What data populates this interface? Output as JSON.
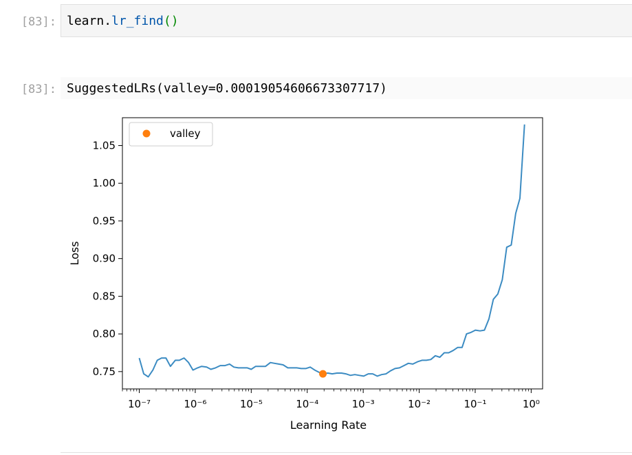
{
  "input_cell": {
    "prompt": "[83]:",
    "code_object": "learn",
    "code_dot": ".",
    "code_method": "lr_find",
    "code_parens": "()"
  },
  "output_cell": {
    "prompt": "[83]:",
    "text": "SuggestedLRs(valley=0.00019054606673307717)"
  },
  "chart_data": {
    "type": "line",
    "title": "",
    "xlabel": "Learning Rate",
    "ylabel": "Loss",
    "xscale": "log",
    "xlim": [
      5e-08,
      1.6
    ],
    "ylim": [
      0.727,
      1.087
    ],
    "grid": false,
    "legend": {
      "position": "top-left",
      "entries": [
        "valley"
      ]
    },
    "x_ticks": [
      "10⁻⁷",
      "10⁻⁶",
      "10⁻⁵",
      "10⁻⁴",
      "10⁻³",
      "10⁻²",
      "10⁻¹",
      "10⁰"
    ],
    "y_ticks": [
      "0.75",
      "0.80",
      "0.85",
      "0.90",
      "0.95",
      "1.00",
      "1.05"
    ],
    "line_color": "#3b8bc2",
    "marker_color": "#ff7f0e",
    "series": [
      {
        "x": [
          1e-07,
          1.2e-07,
          1.45e-07,
          1.75e-07,
          2.1e-07,
          2.5e-07,
          3e-07,
          3.6e-07,
          4.4e-07,
          5.2e-07,
          6.3e-07,
          7.6e-07,
          9.1e-07,
          1.1e-06,
          1.3e-06,
          1.6e-06,
          1.9e-06,
          2.3e-06,
          2.8e-06,
          3.4e-06,
          4.1e-06,
          4.9e-06,
          5.9e-06,
          7.1e-06,
          8.5e-06,
          1e-05,
          1.2e-05,
          1.5e-05,
          1.8e-05,
          2.2e-05,
          2.6e-05,
          3.1e-05,
          3.7e-05,
          4.5e-05,
          5.4e-05,
          6.5e-05,
          7.8e-05,
          9.4e-05,
          0.000113,
          0.000136,
          0.000163,
          0.00019,
          0.000235,
          0.00028,
          0.00034,
          0.00041,
          0.00049,
          0.00059,
          0.00071,
          0.00085,
          0.00102,
          0.00123,
          0.00148,
          0.00178,
          0.00213,
          0.00256,
          0.00308,
          0.0037,
          0.00445,
          0.00535,
          0.0064,
          0.0077,
          0.0093,
          0.0112,
          0.0134,
          0.0161,
          0.0194,
          0.0233,
          0.028,
          0.0336,
          0.0404,
          0.0485,
          0.0583,
          0.07,
          0.084,
          0.101,
          0.122,
          0.146,
          0.176,
          0.211,
          0.254,
          0.305,
          0.366,
          0.44,
          0.53,
          0.63,
          0.76
        ],
        "y": [
          0.768,
          0.747,
          0.743,
          0.752,
          0.765,
          0.768,
          0.768,
          0.757,
          0.765,
          0.765,
          0.768,
          0.762,
          0.752,
          0.755,
          0.757,
          0.756,
          0.753,
          0.755,
          0.758,
          0.758,
          0.76,
          0.756,
          0.755,
          0.755,
          0.755,
          0.753,
          0.757,
          0.757,
          0.757,
          0.762,
          0.761,
          0.76,
          0.759,
          0.755,
          0.755,
          0.755,
          0.754,
          0.754,
          0.756,
          0.752,
          0.749,
          0.747,
          0.748,
          0.747,
          0.748,
          0.748,
          0.747,
          0.745,
          0.746,
          0.745,
          0.744,
          0.747,
          0.747,
          0.744,
          0.746,
          0.747,
          0.751,
          0.754,
          0.755,
          0.758,
          0.761,
          0.76,
          0.763,
          0.765,
          0.765,
          0.766,
          0.771,
          0.769,
          0.775,
          0.775,
          0.778,
          0.782,
          0.782,
          0.8,
          0.802,
          0.805,
          0.804,
          0.805,
          0.82,
          0.846,
          0.853,
          0.872,
          0.915,
          0.918,
          0.96,
          0.98,
          1.078
        ]
      }
    ],
    "points": [
      {
        "name": "valley",
        "x": 0.00019054606673307717,
        "y": 0.747
      }
    ]
  }
}
